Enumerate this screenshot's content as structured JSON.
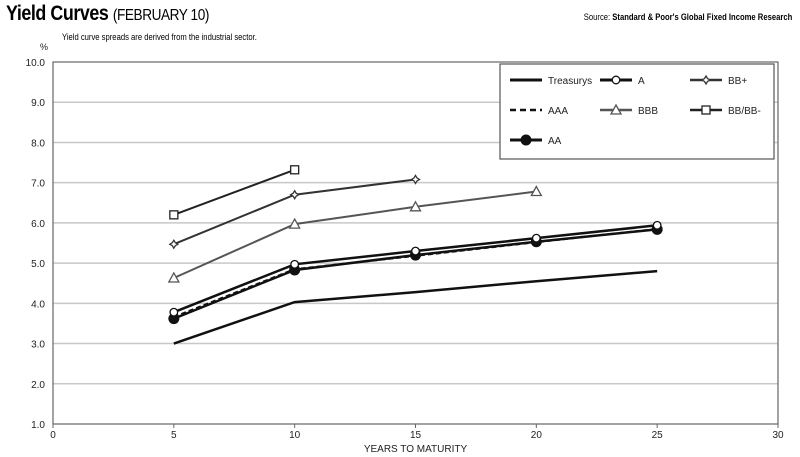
{
  "chart_data": {
    "type": "line",
    "title": "Yield Curves",
    "title_date": "(FEBRUARY 10)",
    "subtitle": "Yield curve spreads are derived from the industrial sector.",
    "source_label": "Source:",
    "source": "Standard & Poor's Global Fixed Income Research",
    "xlabel": "YEARS TO MATURITY",
    "ylabel": "%",
    "xlim": [
      0,
      30
    ],
    "ylim": [
      1,
      10
    ],
    "xticks": [
      "0",
      "5",
      "10",
      "15",
      "20",
      "25",
      "30"
    ],
    "yticks": [
      "1.0",
      "2.0",
      "3.0",
      "4.0",
      "5.0",
      "6.0",
      "7.0",
      "8.0",
      "9.0",
      "10.0"
    ],
    "grid": true,
    "legend_position": "top-right",
    "series": [
      {
        "name": "Treasurys",
        "x": [
          5,
          10,
          15,
          20,
          25
        ],
        "values": [
          3.0,
          4.03,
          4.28,
          4.55,
          4.8
        ],
        "marker": "none",
        "dash": false,
        "color": "#111111",
        "width": 2.5
      },
      {
        "name": "AAA",
        "x": [
          5,
          10,
          15,
          20,
          25
        ],
        "values": [
          3.66,
          4.85,
          5.18,
          5.52,
          5.85
        ],
        "marker": "none",
        "dash": true,
        "color": "#111111",
        "width": 2
      },
      {
        "name": "AA",
        "x": [
          5,
          10,
          15,
          20,
          25
        ],
        "values": [
          3.62,
          4.83,
          5.2,
          5.53,
          5.84
        ],
        "marker": "dot",
        "dash": false,
        "color": "#111111",
        "width": 2.5
      },
      {
        "name": "A",
        "x": [
          5,
          10,
          15,
          20,
          25
        ],
        "values": [
          3.78,
          4.97,
          5.3,
          5.62,
          5.94
        ],
        "marker": "diamond",
        "dash": false,
        "color": "#111111",
        "width": 2.5
      },
      {
        "name": "BBB",
        "x": [
          5,
          10,
          15,
          20
        ],
        "values": [
          4.63,
          5.97,
          6.4,
          6.78
        ],
        "marker": "triangle",
        "dash": false,
        "color": "#555555",
        "width": 2
      },
      {
        "name": "BB+",
        "x": [
          5,
          10,
          15
        ],
        "values": [
          5.47,
          6.7,
          7.08
        ],
        "marker": "star",
        "dash": false,
        "color": "#333333",
        "width": 2
      },
      {
        "name": "BB/BB-",
        "x": [
          5,
          10
        ],
        "values": [
          6.2,
          7.32
        ],
        "marker": "square",
        "dash": false,
        "color": "#222222",
        "width": 2
      }
    ]
  }
}
